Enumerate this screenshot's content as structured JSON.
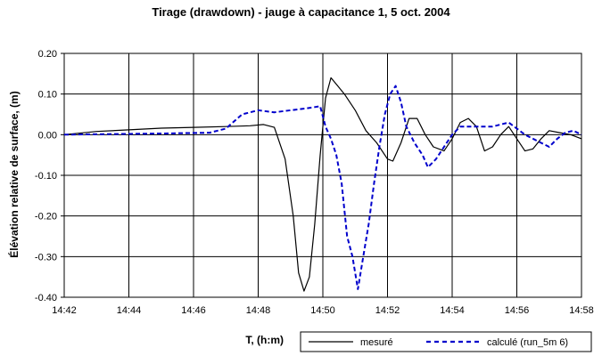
{
  "chart_data": {
    "type": "line",
    "title": "Tirage (drawdown) - jauge à capacitance 1, 5 oct. 2004",
    "xlabel": "T, (h:m)",
    "ylabel": "Élévation relative de surface, (m)",
    "x_ticks": [
      "14:42",
      "14:44",
      "14:46",
      "14:48",
      "14:50",
      "14:52",
      "14:54",
      "14:56",
      "14:58"
    ],
    "y_ticks": [
      "0.20",
      "0.10",
      "0.00",
      "-0.10",
      "-0.20",
      "-0.30",
      "-0.40"
    ],
    "xlim": [
      "14:42",
      "14:58"
    ],
    "ylim": [
      -0.4,
      0.2
    ],
    "grid": true,
    "legend_position": "bottom",
    "series": [
      {
        "name": "mesuré",
        "color": "#000000",
        "style": "solid",
        "points": [
          [
            "14:42:00",
            0.0
          ],
          [
            "14:43:00",
            0.008
          ],
          [
            "14:44:00",
            0.012
          ],
          [
            "14:45:00",
            0.016
          ],
          [
            "14:46:00",
            0.018
          ],
          [
            "14:47:00",
            0.02
          ],
          [
            "14:47:45",
            0.022
          ],
          [
            "14:48:10",
            0.025
          ],
          [
            "14:48:30",
            0.018
          ],
          [
            "14:48:50",
            -0.06
          ],
          [
            "14:49:05",
            -0.2
          ],
          [
            "14:49:15",
            -0.34
          ],
          [
            "14:49:25",
            -0.385
          ],
          [
            "14:49:35",
            -0.35
          ],
          [
            "14:49:45",
            -0.22
          ],
          [
            "14:49:55",
            -0.05
          ],
          [
            "14:50:05",
            0.09
          ],
          [
            "14:50:15",
            0.14
          ],
          [
            "14:50:40",
            0.1
          ],
          [
            "14:51:00",
            0.06
          ],
          [
            "14:51:20",
            0.01
          ],
          [
            "14:51:40",
            -0.02
          ],
          [
            "14:52:00",
            -0.06
          ],
          [
            "14:52:10",
            -0.065
          ],
          [
            "14:52:25",
            -0.02
          ],
          [
            "14:52:40",
            0.04
          ],
          [
            "14:52:55",
            0.04
          ],
          [
            "14:53:10",
            0.0
          ],
          [
            "14:53:25",
            -0.03
          ],
          [
            "14:53:45",
            -0.04
          ],
          [
            "14:54:00",
            -0.01
          ],
          [
            "14:54:15",
            0.03
          ],
          [
            "14:54:30",
            0.04
          ],
          [
            "14:54:45",
            0.02
          ],
          [
            "14:55:00",
            -0.04
          ],
          [
            "14:55:15",
            -0.03
          ],
          [
            "14:55:30",
            0.0
          ],
          [
            "14:55:45",
            0.02
          ],
          [
            "14:56:00",
            -0.01
          ],
          [
            "14:56:15",
            -0.04
          ],
          [
            "14:56:30",
            -0.035
          ],
          [
            "14:56:45",
            -0.01
          ],
          [
            "14:57:00",
            0.01
          ],
          [
            "14:57:20",
            0.005
          ],
          [
            "14:57:40",
            0.0
          ],
          [
            "14:58:00",
            -0.01
          ]
        ]
      },
      {
        "name": "calculé (run_5m 6)",
        "color": "#0000cc",
        "style": "dashed",
        "points": [
          [
            "14:42:00",
            0.0
          ],
          [
            "14:45:00",
            0.003
          ],
          [
            "14:46:30",
            0.005
          ],
          [
            "14:47:00",
            0.015
          ],
          [
            "14:47:30",
            0.05
          ],
          [
            "14:48:00",
            0.06
          ],
          [
            "14:48:30",
            0.055
          ],
          [
            "14:49:00",
            0.06
          ],
          [
            "14:49:30",
            0.065
          ],
          [
            "14:49:55",
            0.07
          ],
          [
            "14:50:05",
            0.02
          ],
          [
            "14:50:15",
            -0.01
          ],
          [
            "14:50:25",
            -0.05
          ],
          [
            "14:50:35",
            -0.12
          ],
          [
            "14:50:45",
            -0.25
          ],
          [
            "14:50:55",
            -0.3
          ],
          [
            "14:51:05",
            -0.38
          ],
          [
            "14:51:15",
            -0.3
          ],
          [
            "14:51:25",
            -0.22
          ],
          [
            "14:51:35",
            -0.12
          ],
          [
            "14:51:45",
            -0.03
          ],
          [
            "14:51:55",
            0.05
          ],
          [
            "14:52:05",
            0.1
          ],
          [
            "14:52:15",
            0.12
          ],
          [
            "14:52:25",
            0.08
          ],
          [
            "14:52:35",
            0.02
          ],
          [
            "14:52:50",
            -0.02
          ],
          [
            "14:53:05",
            -0.05
          ],
          [
            "14:53:15",
            -0.08
          ],
          [
            "14:53:30",
            -0.06
          ],
          [
            "14:53:45",
            -0.03
          ],
          [
            "14:54:00",
            0.0
          ],
          [
            "14:54:15",
            0.02
          ],
          [
            "14:54:45",
            0.02
          ],
          [
            "14:55:15",
            0.02
          ],
          [
            "14:55:45",
            0.03
          ],
          [
            "14:56:15",
            0.0
          ],
          [
            "14:56:45",
            -0.02
          ],
          [
            "14:57:00",
            -0.03
          ],
          [
            "14:57:15",
            -0.01
          ],
          [
            "14:57:30",
            0.005
          ],
          [
            "14:57:45",
            0.01
          ],
          [
            "14:58:00",
            0.0
          ]
        ]
      }
    ]
  }
}
